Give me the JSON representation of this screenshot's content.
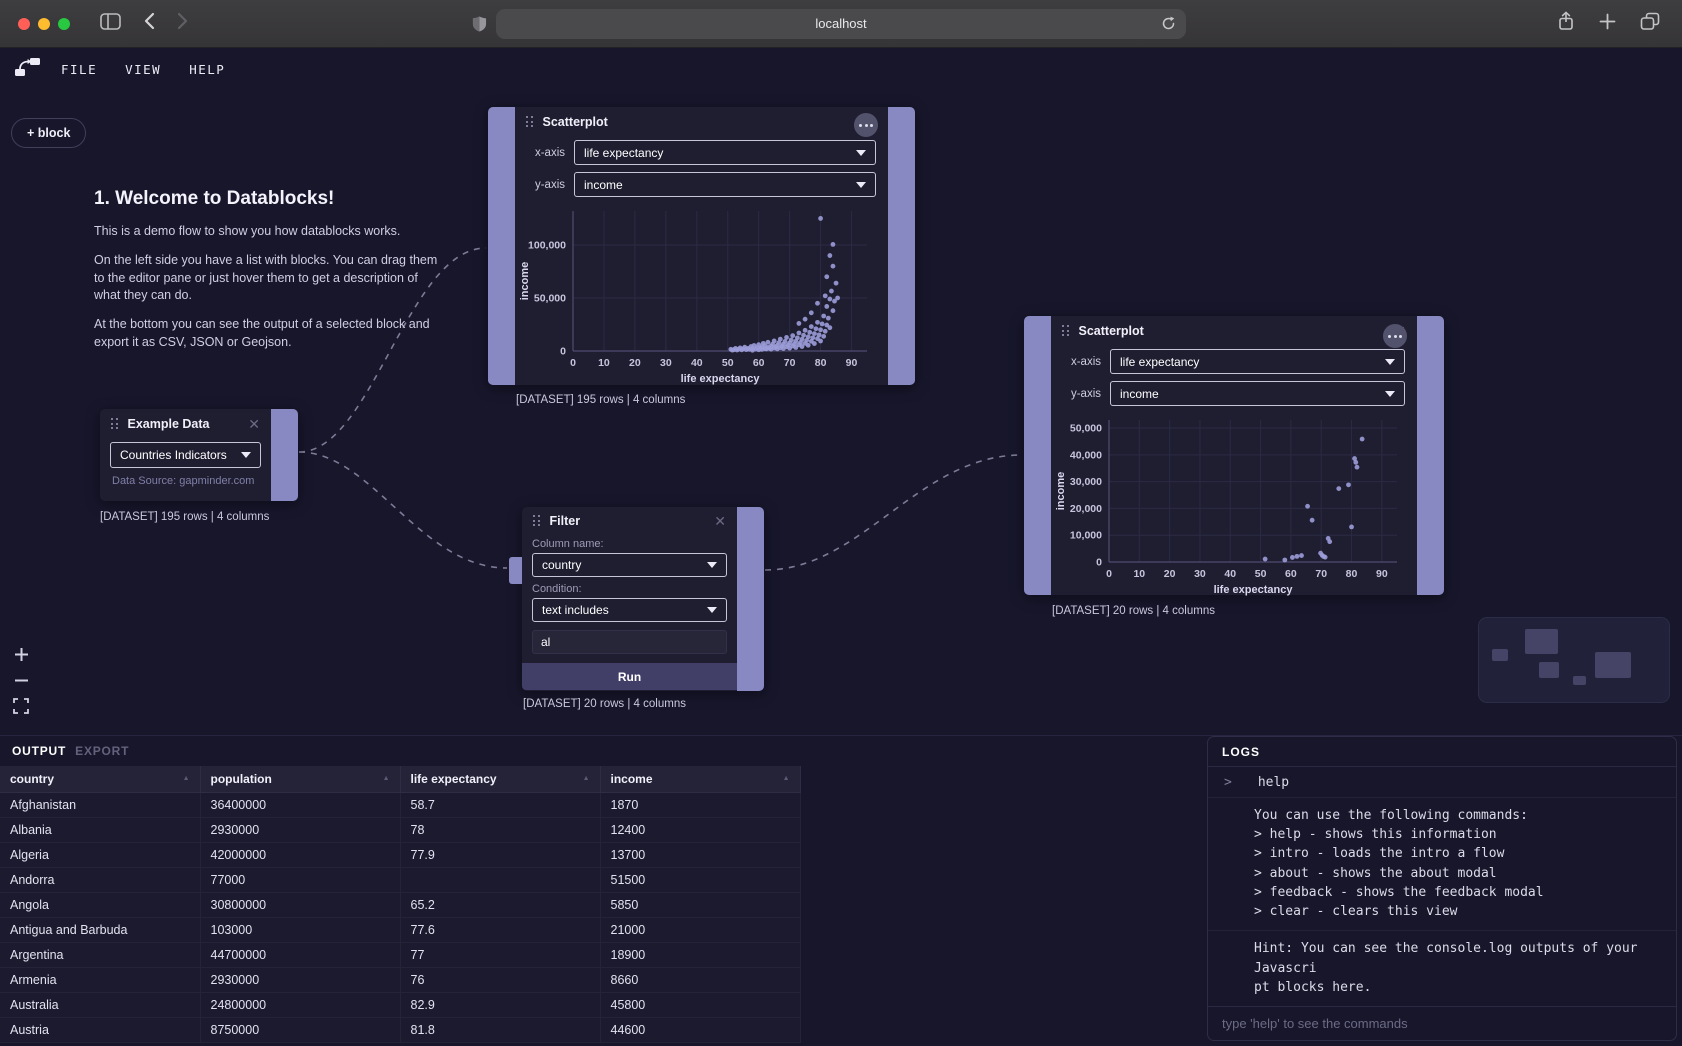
{
  "browser": {
    "url": "localhost"
  },
  "menubar": {
    "items": [
      "FILE",
      "VIEW",
      "HELP"
    ]
  },
  "canvas": {
    "add_block_label": "+ block",
    "welcome": {
      "title": "1. Welcome to Datablocks!",
      "p1": "This is a demo flow to show you how datablocks works.",
      "p2": "On the left side you have a list with blocks. You can drag them to the editor pane or just hover them to get a description of what they can do.",
      "p3": "At the bottom you can see the output of a selected block and export it as CSV, JSON or Geojson."
    },
    "nodes": {
      "scatter_top": {
        "title": "Scatterplot",
        "x_label": "x-axis",
        "x_value": "life expectancy",
        "y_label": "y-axis",
        "y_value": "income",
        "caption": "[DATASET] 195 rows | 4 columns"
      },
      "example_data": {
        "title": "Example Data",
        "dataset_value": "Countries Indicators",
        "source": "Data Source: gapminder.com",
        "caption": "[DATASET] 195 rows | 4 columns"
      },
      "filter": {
        "title": "Filter",
        "column_label": "Column name:",
        "column_value": "country",
        "condition_label": "Condition:",
        "condition_value": "text includes",
        "input_value": "al",
        "run_label": "Run",
        "caption": "[DATASET] 20 rows | 4 columns"
      },
      "scatter_right": {
        "title": "Scatterplot",
        "x_label": "x-axis",
        "x_value": "life expectancy",
        "y_label": "y-axis",
        "y_value": "income",
        "caption": "[DATASET] 20 rows | 4 columns"
      }
    }
  },
  "chart_data": [
    {
      "type": "scatter",
      "title": "",
      "xlabel": "life expectancy",
      "ylabel": "income",
      "xlim": [
        0,
        95
      ],
      "ylim": [
        0,
        132000
      ],
      "xticks": [
        0,
        10,
        20,
        30,
        40,
        50,
        60,
        70,
        80,
        90
      ],
      "yticks": [
        0,
        50000,
        100000
      ],
      "grid": true,
      "points": [
        [
          51,
          1600
        ],
        [
          51.5,
          800
        ],
        [
          52,
          1250
        ],
        [
          52.5,
          2400
        ],
        [
          53,
          950
        ],
        [
          53.5,
          1700
        ],
        [
          54,
          2900
        ],
        [
          54.5,
          1100
        ],
        [
          55,
          2000
        ],
        [
          55.5,
          3600
        ],
        [
          56,
          1300
        ],
        [
          56.5,
          2500
        ],
        [
          57,
          1550
        ],
        [
          57.5,
          4200
        ],
        [
          58,
          700
        ],
        [
          58,
          2100
        ],
        [
          58.5,
          5200
        ],
        [
          59,
          1800
        ],
        [
          59.5,
          3200
        ],
        [
          60,
          1150
        ],
        [
          60,
          6000
        ],
        [
          60.5,
          2700
        ],
        [
          61,
          4000
        ],
        [
          61,
          1500
        ],
        [
          61.5,
          7200
        ],
        [
          62,
          2200
        ],
        [
          62,
          5000
        ],
        [
          62.5,
          1900
        ],
        [
          63,
          3400
        ],
        [
          63,
          8200
        ],
        [
          63.5,
          2600
        ],
        [
          64,
          4600
        ],
        [
          64,
          1700
        ],
        [
          64.5,
          6400
        ],
        [
          65,
          2900
        ],
        [
          65,
          9500
        ],
        [
          65.5,
          3800
        ],
        [
          66,
          5400
        ],
        [
          66,
          1900
        ],
        [
          66.5,
          7800
        ],
        [
          67,
          3100
        ],
        [
          67,
          11200
        ],
        [
          67.5,
          4700
        ],
        [
          68,
          6600
        ],
        [
          68,
          2300
        ],
        [
          68.5,
          9000
        ],
        [
          69,
          3900
        ],
        [
          69,
          12800
        ],
        [
          69.5,
          5600
        ],
        [
          70,
          7600
        ],
        [
          70,
          2700
        ],
        [
          70.5,
          10400
        ],
        [
          71,
          4700
        ],
        [
          71,
          14500
        ],
        [
          71.5,
          6600
        ],
        [
          72,
          9200
        ],
        [
          72,
          3300
        ],
        [
          72.5,
          12400
        ],
        [
          73,
          5800
        ],
        [
          73,
          17000
        ],
        [
          73.5,
          8000
        ],
        [
          74,
          11000
        ],
        [
          74,
          4200
        ],
        [
          74.5,
          14800
        ],
        [
          75,
          7200
        ],
        [
          75,
          19500
        ],
        [
          75.5,
          10000
        ],
        [
          76,
          13400
        ],
        [
          76,
          5400
        ],
        [
          76.5,
          17600
        ],
        [
          77,
          9200
        ],
        [
          77,
          23000
        ],
        [
          77.5,
          12400
        ],
        [
          78,
          16400
        ],
        [
          78,
          7000
        ],
        [
          78.5,
          21000
        ],
        [
          79,
          11600
        ],
        [
          79,
          27000
        ],
        [
          79.5,
          15200
        ],
        [
          80,
          20000
        ],
        [
          80,
          9400
        ],
        [
          80,
          125000
        ],
        [
          80.5,
          25500
        ],
        [
          81,
          13800
        ],
        [
          81,
          33000
        ],
        [
          81.5,
          18600
        ],
        [
          82,
          24500
        ],
        [
          82,
          42000
        ],
        [
          82.5,
          31000
        ],
        [
          83,
          49000
        ],
        [
          83,
          22000
        ],
        [
          83.5,
          56500
        ],
        [
          84,
          38000
        ],
        [
          84,
          100500
        ],
        [
          84.5,
          47000
        ],
        [
          85,
          64000
        ],
        [
          83,
          90000
        ],
        [
          81.5,
          52000
        ],
        [
          79,
          45000
        ],
        [
          77,
          36000
        ],
        [
          84,
          80000
        ],
        [
          82,
          70000
        ],
        [
          75,
          30000
        ],
        [
          73,
          26000
        ],
        [
          85.5,
          50000
        ]
      ]
    },
    {
      "type": "scatter",
      "title": "",
      "xlabel": "life expectancy",
      "ylabel": "income",
      "xlim": [
        0,
        95
      ],
      "ylim": [
        0,
        53000
      ],
      "xticks": [
        0,
        10,
        20,
        30,
        40,
        50,
        60,
        70,
        80,
        90
      ],
      "yticks": [
        0,
        10000,
        20000,
        30000,
        40000,
        50000
      ],
      "grid": true,
      "points": [
        [
          51.5,
          1100
        ],
        [
          58,
          750
        ],
        [
          60.5,
          1700
        ],
        [
          62,
          2100
        ],
        [
          63.5,
          2400
        ],
        [
          65.5,
          20800
        ],
        [
          67,
          15600
        ],
        [
          69.8,
          3300
        ],
        [
          70.3,
          2500
        ],
        [
          70.8,
          2050
        ],
        [
          71.3,
          1800
        ],
        [
          72.3,
          8800
        ],
        [
          72.8,
          7600
        ],
        [
          75.8,
          27400
        ],
        [
          79,
          28800
        ],
        [
          80,
          13100
        ],
        [
          81,
          38600
        ],
        [
          81.4,
          37200
        ],
        [
          81.8,
          35400
        ],
        [
          83.5,
          45900
        ]
      ]
    }
  ],
  "output": {
    "tabs": {
      "output": "OUTPUT",
      "export": "EXPORT"
    },
    "table": {
      "columns": [
        "country",
        "population",
        "life expectancy",
        "income"
      ],
      "rows": [
        [
          "Afghanistan",
          "36400000",
          "58.7",
          "1870"
        ],
        [
          "Albania",
          "2930000",
          "78",
          "12400"
        ],
        [
          "Algeria",
          "42000000",
          "77.9",
          "13700"
        ],
        [
          "Andorra",
          "77000",
          "",
          "51500"
        ],
        [
          "Angola",
          "30800000",
          "65.2",
          "5850"
        ],
        [
          "Antigua and Barbuda",
          "103000",
          "77.6",
          "21000"
        ],
        [
          "Argentina",
          "44700000",
          "77",
          "18900"
        ],
        [
          "Armenia",
          "2930000",
          "76",
          "8660"
        ],
        [
          "Australia",
          "24800000",
          "82.9",
          "45800"
        ],
        [
          "Austria",
          "8750000",
          "81.8",
          "44600"
        ]
      ]
    }
  },
  "logs": {
    "title": "LOGS",
    "command": "help",
    "response": "You can use the following commands:\n> help - shows this information\n> intro - loads the intro a flow\n> about - shows the about modal\n> feedback - shows the feedback modal\n> clear - clears this view",
    "hint": "Hint: You can see the console.log outputs of your Javascri\npt blocks here.",
    "input_placeholder": "type 'help' to see the commands"
  },
  "colors": {
    "accent_purple": "#8889c3",
    "point_purple": "#9c9cd9",
    "node_bg": "#1f1e31",
    "canvas_bg": "#17162b",
    "traffic_red": "#ff5f57",
    "traffic_yellow": "#febc2e",
    "traffic_green": "#28c840"
  }
}
